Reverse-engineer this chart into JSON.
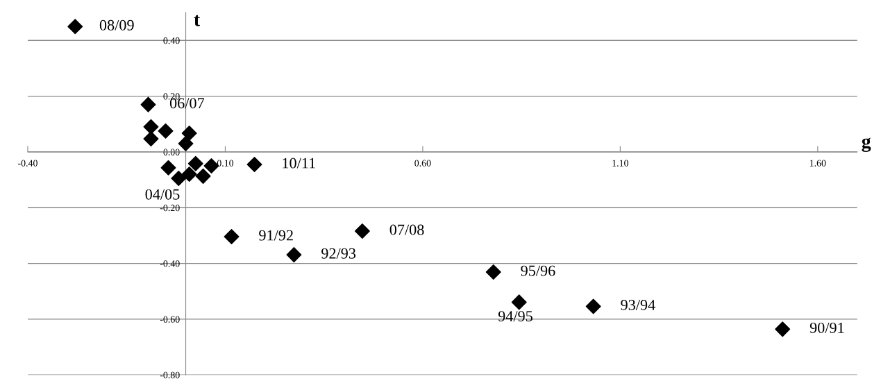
{
  "chart_data": {
    "type": "scatter",
    "xlabel": "g",
    "ylabel": "t",
    "x": [
      -0.28,
      -0.095,
      -0.088,
      -0.051,
      0.009,
      -0.088,
      0.0,
      -0.044,
      0.025,
      0.065,
      -0.018,
      0.009,
      0.044,
      0.174,
      0.116,
      0.274,
      0.447,
      0.779,
      0.844,
      1.032,
      1.511
    ],
    "series": [
      {
        "color": "#000000",
        "values": [
          0.45,
          0.17,
          0.09,
          0.075,
          0.067,
          0.047,
          0.03,
          -0.057,
          -0.042,
          -0.05,
          -0.095,
          -0.08,
          -0.087,
          -0.045,
          -0.304,
          -0.369,
          -0.284,
          -0.431,
          -0.539,
          -0.554,
          -0.636
        ]
      }
    ],
    "marker": "diamond",
    "grid": "y",
    "legend": false,
    "xlim": [
      -0.4,
      1.7
    ],
    "ylim": [
      -0.8,
      0.5
    ],
    "xticks": [
      {
        "value": -0.4,
        "label": "-0.40"
      },
      {
        "value": 0.1,
        "label": "0.10"
      },
      {
        "value": 0.6,
        "label": "0.60"
      },
      {
        "value": 1.1,
        "label": "1.10"
      },
      {
        "value": 1.6,
        "label": "1.60"
      }
    ],
    "yticks": [
      {
        "value": 0.4,
        "label": "0.40"
      },
      {
        "value": 0.2,
        "label": "0.20"
      },
      {
        "value": 0.0,
        "label": "0.00"
      },
      {
        "value": -0.2,
        "label": "-0.20"
      },
      {
        "value": -0.4,
        "label": "-0.40"
      },
      {
        "value": -0.6,
        "label": "-0.60"
      },
      {
        "value": -0.8,
        "label": "-0.80"
      }
    ],
    "annotations": [
      {
        "text": "08/09",
        "x": -0.28,
        "y": 0.45
      },
      {
        "text": "06/07",
        "x": -0.095,
        "y": 0.17
      },
      {
        "text": "04/05",
        "x": -0.018,
        "y": -0.095
      },
      {
        "text": "10/11",
        "x": 0.174,
        "y": -0.045
      },
      {
        "text": "91/92",
        "x": 0.116,
        "y": -0.304
      },
      {
        "text": "92/93",
        "x": 0.274,
        "y": -0.369
      },
      {
        "text": "07/08",
        "x": 0.447,
        "y": -0.284
      },
      {
        "text": "95/96",
        "x": 0.779,
        "y": -0.431
      },
      {
        "text": "94/95",
        "x": 0.844,
        "y": -0.539
      },
      {
        "text": "93/94",
        "x": 1.032,
        "y": -0.554
      },
      {
        "text": "90/91",
        "x": 1.511,
        "y": -0.636
      }
    ]
  }
}
